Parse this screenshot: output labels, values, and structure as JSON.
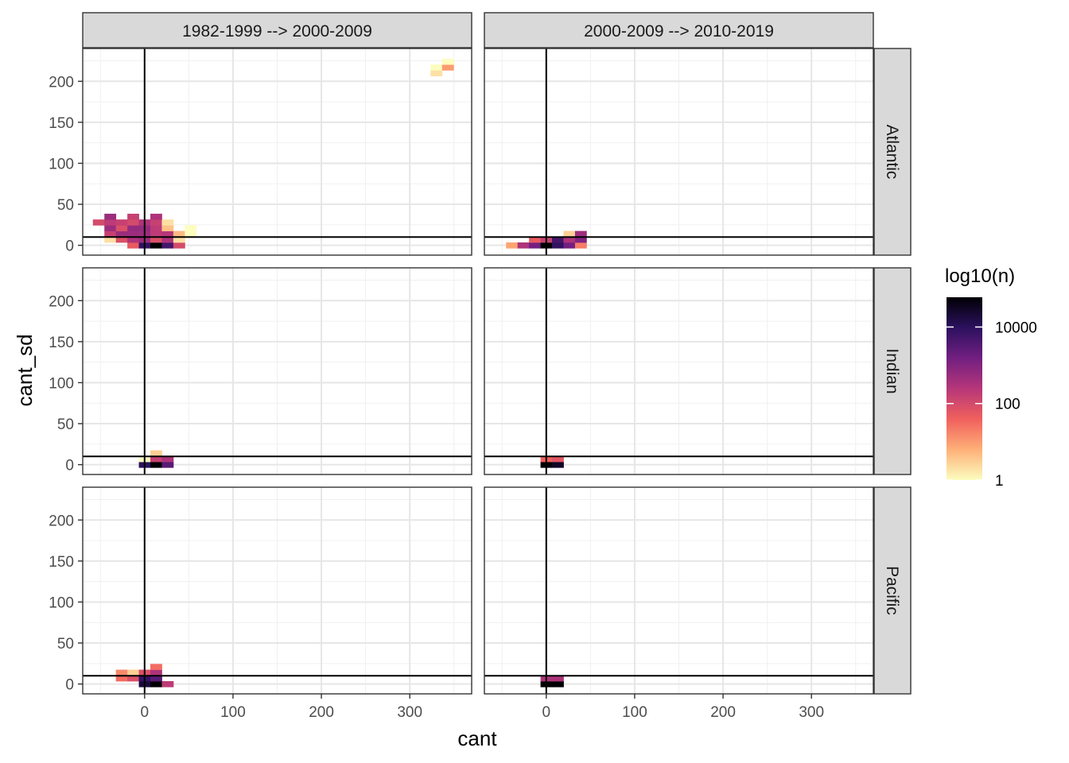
{
  "chart_data": {
    "type": "heatmap",
    "xlabel": "cant",
    "ylabel": "cant_sd",
    "xlim": [
      -70,
      370
    ],
    "ylim": [
      -12,
      240
    ],
    "x_ticks": [
      0,
      100,
      200,
      300
    ],
    "x_tick_labels": [
      "0",
      "100",
      "200",
      "300"
    ],
    "y_ticks": [
      0,
      50,
      100,
      150,
      200
    ],
    "y_tick_labels": [
      "0",
      "50",
      "100",
      "150",
      "200"
    ],
    "grid": true,
    "reference_lines": {
      "vertical_x": 0,
      "horizontal_y": 10
    },
    "bin_width": {
      "x": 13,
      "y": 7
    },
    "column_facets": [
      "1982-1999 --> 2000-2009",
      "2000-2009 --> 2010-2019"
    ],
    "row_facets": [
      "Atlantic",
      "Indian",
      "Pacific"
    ],
    "legend": {
      "title": "log10(n)",
      "position": "right",
      "scale": "log10",
      "range": [
        1,
        60000
      ],
      "ticks": [
        1,
        100,
        10000
      ],
      "tick_labels": [
        "1",
        "100",
        "10000"
      ],
      "colors": [
        "#FCFDBF",
        "#FEB078",
        "#F1605D",
        "#B63679",
        "#721F81",
        "#2C115F",
        "#000004"
      ]
    },
    "panels": [
      {
        "row": "Atlantic",
        "col": "1982-1999 --> 2000-2009",
        "cells": [
          {
            "x": -13,
            "y": 0,
            "n": 50
          },
          {
            "x": 0,
            "y": 0,
            "n": 8000
          },
          {
            "x": 13,
            "y": 0,
            "n": 60000
          },
          {
            "x": 26,
            "y": 0,
            "n": 5000
          },
          {
            "x": 39,
            "y": 0,
            "n": 100
          },
          {
            "x": -39,
            "y": 7,
            "n": 2
          },
          {
            "x": -26,
            "y": 7,
            "n": 80
          },
          {
            "x": -13,
            "y": 7,
            "n": 300
          },
          {
            "x": 0,
            "y": 7,
            "n": 500
          },
          {
            "x": 13,
            "y": 7,
            "n": 80
          },
          {
            "x": 26,
            "y": 7,
            "n": 300
          },
          {
            "x": 39,
            "y": 7,
            "n": 2
          },
          {
            "x": -39,
            "y": 14,
            "n": 150
          },
          {
            "x": -26,
            "y": 14,
            "n": 500
          },
          {
            "x": -13,
            "y": 14,
            "n": 500
          },
          {
            "x": 0,
            "y": 14,
            "n": 500
          },
          {
            "x": 13,
            "y": 14,
            "n": 200
          },
          {
            "x": 26,
            "y": 14,
            "n": 250
          },
          {
            "x": 39,
            "y": 14,
            "n": 5
          },
          {
            "x": 52,
            "y": 14,
            "n": 1
          },
          {
            "x": -39,
            "y": 21,
            "n": 500
          },
          {
            "x": -26,
            "y": 21,
            "n": 80
          },
          {
            "x": -13,
            "y": 21,
            "n": 600
          },
          {
            "x": 0,
            "y": 21,
            "n": 600
          },
          {
            "x": 13,
            "y": 21,
            "n": 200
          },
          {
            "x": 26,
            "y": 21,
            "n": 4
          },
          {
            "x": 52,
            "y": 21,
            "n": 1
          },
          {
            "x": -52,
            "y": 28,
            "n": 100
          },
          {
            "x": -39,
            "y": 28,
            "n": 200
          },
          {
            "x": -26,
            "y": 28,
            "n": 150
          },
          {
            "x": -13,
            "y": 28,
            "n": 100
          },
          {
            "x": 0,
            "y": 28,
            "n": 300
          },
          {
            "x": 13,
            "y": 28,
            "n": 150
          },
          {
            "x": 26,
            "y": 28,
            "n": 2
          },
          {
            "x": -39,
            "y": 35,
            "n": 500
          },
          {
            "x": -13,
            "y": 35,
            "n": 150
          },
          {
            "x": 13,
            "y": 35,
            "n": 300
          },
          {
            "x": 330,
            "y": 210,
            "n": 2
          },
          {
            "x": 330,
            "y": 217,
            "n": 1
          },
          {
            "x": 343,
            "y": 217,
            "n": 10
          },
          {
            "x": 343,
            "y": 224,
            "n": 1
          }
        ]
      },
      {
        "row": "Atlantic",
        "col": "2000-2009 --> 2010-2019",
        "cells": [
          {
            "x": -39,
            "y": 0,
            "n": 8
          },
          {
            "x": -26,
            "y": 0,
            "n": 300
          },
          {
            "x": -13,
            "y": 0,
            "n": 1500
          },
          {
            "x": 0,
            "y": 0,
            "n": 60000
          },
          {
            "x": 13,
            "y": 0,
            "n": 8000
          },
          {
            "x": 26,
            "y": 0,
            "n": 1500
          },
          {
            "x": 39,
            "y": 0,
            "n": 20
          },
          {
            "x": -13,
            "y": 7,
            "n": 50
          },
          {
            "x": 0,
            "y": 7,
            "n": 150
          },
          {
            "x": 13,
            "y": 7,
            "n": 5000
          },
          {
            "x": 26,
            "y": 7,
            "n": 300
          },
          {
            "x": 39,
            "y": 7,
            "n": 1000
          },
          {
            "x": 26,
            "y": 14,
            "n": 3
          },
          {
            "x": 39,
            "y": 14,
            "n": 500
          }
        ]
      },
      {
        "row": "Indian",
        "col": "1982-1999 --> 2000-2009",
        "cells": [
          {
            "x": 0,
            "y": 0,
            "n": 10000
          },
          {
            "x": 13,
            "y": 0,
            "n": 60000
          },
          {
            "x": 26,
            "y": 0,
            "n": 3000
          },
          {
            "x": 0,
            "y": 7,
            "n": 1
          },
          {
            "x": 13,
            "y": 7,
            "n": 150
          },
          {
            "x": 26,
            "y": 7,
            "n": 300
          },
          {
            "x": 13,
            "y": 14,
            "n": 3
          }
        ]
      },
      {
        "row": "Indian",
        "col": "2000-2009 --> 2010-2019",
        "cells": [
          {
            "x": 0,
            "y": 0,
            "n": 60000
          },
          {
            "x": 13,
            "y": 0,
            "n": 30000
          },
          {
            "x": 0,
            "y": 7,
            "n": 40
          },
          {
            "x": 13,
            "y": 7,
            "n": 60
          }
        ]
      },
      {
        "row": "Pacific",
        "col": "1982-1999 --> 2000-2009",
        "cells": [
          {
            "x": 0,
            "y": 0,
            "n": 20000
          },
          {
            "x": 13,
            "y": 0,
            "n": 60000
          },
          {
            "x": 26,
            "y": 0,
            "n": 200
          },
          {
            "x": -26,
            "y": 7,
            "n": 30
          },
          {
            "x": -13,
            "y": 7,
            "n": 80
          },
          {
            "x": 0,
            "y": 7,
            "n": 8000
          },
          {
            "x": 13,
            "y": 7,
            "n": 3000
          },
          {
            "x": -26,
            "y": 14,
            "n": 15
          },
          {
            "x": -13,
            "y": 14,
            "n": 3
          },
          {
            "x": 0,
            "y": 14,
            "n": 80
          },
          {
            "x": 13,
            "y": 14,
            "n": 300
          },
          {
            "x": 13,
            "y": 21,
            "n": 30
          }
        ]
      },
      {
        "row": "Pacific",
        "col": "2000-2009 --> 2010-2019",
        "cells": [
          {
            "x": 0,
            "y": 0,
            "n": 60000
          },
          {
            "x": 13,
            "y": 0,
            "n": 60000
          },
          {
            "x": 0,
            "y": 7,
            "n": 300
          },
          {
            "x": 13,
            "y": 7,
            "n": 300
          }
        ]
      }
    ]
  }
}
